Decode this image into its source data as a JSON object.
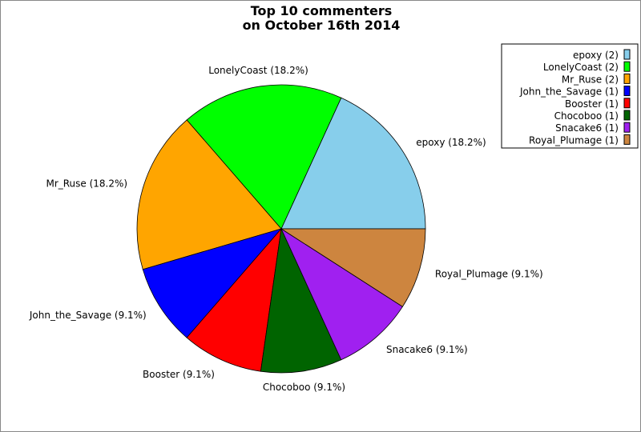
{
  "chart_data": {
    "type": "pie",
    "title": [
      "Top 10 commenters",
      "on October 16th 2014"
    ],
    "legend_position": "top-right",
    "start_angle_deg": 0,
    "direction": "counterclockwise",
    "slices": [
      {
        "name": "epoxy",
        "value": 2,
        "percent": "18.2%",
        "color": "#87CEEB",
        "label": "epoxy (18.2%)",
        "legend": "epoxy (2)"
      },
      {
        "name": "LonelyCoast",
        "value": 2,
        "percent": "18.2%",
        "color": "#00FF00",
        "label": "LonelyCoast (18.2%)",
        "legend": "LonelyCoast (2)"
      },
      {
        "name": "Mr_Ruse",
        "value": 2,
        "percent": "18.2%",
        "color": "#FFA500",
        "label": "Mr_Ruse (18.2%)",
        "legend": "Mr_Ruse (2)"
      },
      {
        "name": "John_the_Savage",
        "value": 1,
        "percent": "9.1%",
        "color": "#0000FF",
        "label": "John_the_Savage (9.1%)",
        "legend": "John_the_Savage (1)"
      },
      {
        "name": "Booster",
        "value": 1,
        "percent": "9.1%",
        "color": "#FF0000",
        "label": "Booster (9.1%)",
        "legend": "Booster (1)"
      },
      {
        "name": "Chocoboo",
        "value": 1,
        "percent": "9.1%",
        "color": "#006400",
        "label": "Chocoboo (9.1%)",
        "legend": "Chocoboo (1)"
      },
      {
        "name": "Snacake6",
        "value": 1,
        "percent": "9.1%",
        "color": "#A020F0",
        "label": "Snacake6 (9.1%)",
        "legend": "Snacake6 (1)"
      },
      {
        "name": "Royal_Plumage",
        "value": 1,
        "percent": "9.1%",
        "color": "#CD853F",
        "label": "Royal_Plumage (9.1%)",
        "legend": "Royal_Plumage (1)"
      }
    ]
  }
}
